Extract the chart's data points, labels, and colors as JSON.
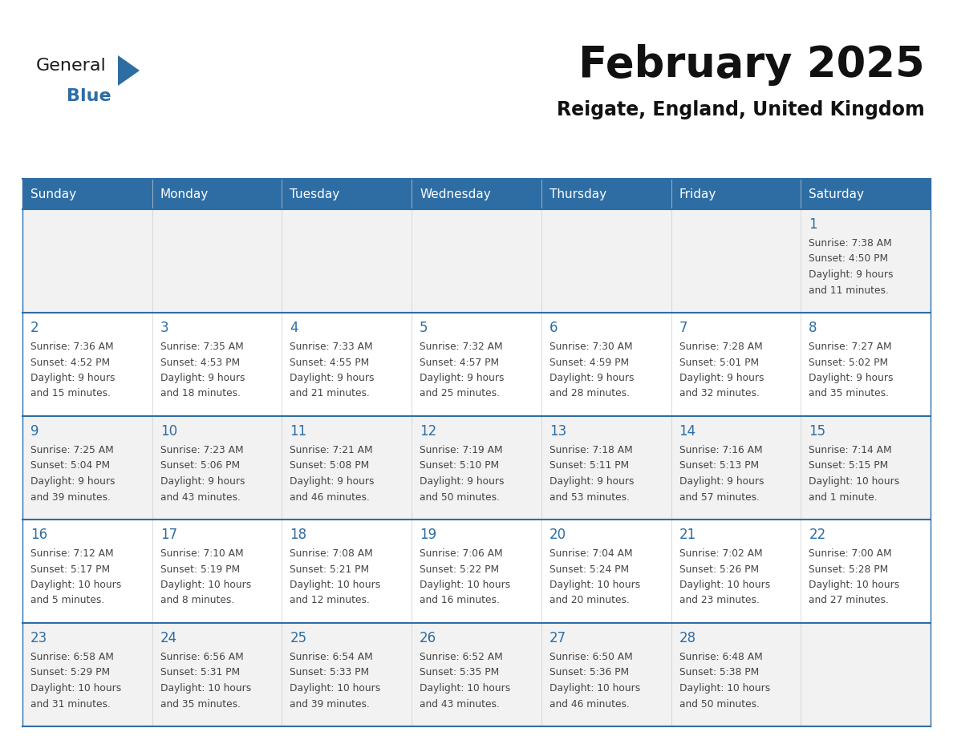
{
  "title": "February 2025",
  "subtitle": "Reigate, England, United Kingdom",
  "header_bg": "#2E6DA4",
  "header_text": "#FFFFFF",
  "cell_bg_odd": "#F2F2F2",
  "cell_bg_even": "#FFFFFF",
  "day_number_color": "#2E6DA4",
  "cell_text_color": "#444444",
  "border_color": "#2E6DA4",
  "days_of_week": [
    "Sunday",
    "Monday",
    "Tuesday",
    "Wednesday",
    "Thursday",
    "Friday",
    "Saturday"
  ],
  "calendar_data": [
    [
      {
        "day": "",
        "info": ""
      },
      {
        "day": "",
        "info": ""
      },
      {
        "day": "",
        "info": ""
      },
      {
        "day": "",
        "info": ""
      },
      {
        "day": "",
        "info": ""
      },
      {
        "day": "",
        "info": ""
      },
      {
        "day": "1",
        "info": "Sunrise: 7:38 AM\nSunset: 4:50 PM\nDaylight: 9 hours\nand 11 minutes."
      }
    ],
    [
      {
        "day": "2",
        "info": "Sunrise: 7:36 AM\nSunset: 4:52 PM\nDaylight: 9 hours\nand 15 minutes."
      },
      {
        "day": "3",
        "info": "Sunrise: 7:35 AM\nSunset: 4:53 PM\nDaylight: 9 hours\nand 18 minutes."
      },
      {
        "day": "4",
        "info": "Sunrise: 7:33 AM\nSunset: 4:55 PM\nDaylight: 9 hours\nand 21 minutes."
      },
      {
        "day": "5",
        "info": "Sunrise: 7:32 AM\nSunset: 4:57 PM\nDaylight: 9 hours\nand 25 minutes."
      },
      {
        "day": "6",
        "info": "Sunrise: 7:30 AM\nSunset: 4:59 PM\nDaylight: 9 hours\nand 28 minutes."
      },
      {
        "day": "7",
        "info": "Sunrise: 7:28 AM\nSunset: 5:01 PM\nDaylight: 9 hours\nand 32 minutes."
      },
      {
        "day": "8",
        "info": "Sunrise: 7:27 AM\nSunset: 5:02 PM\nDaylight: 9 hours\nand 35 minutes."
      }
    ],
    [
      {
        "day": "9",
        "info": "Sunrise: 7:25 AM\nSunset: 5:04 PM\nDaylight: 9 hours\nand 39 minutes."
      },
      {
        "day": "10",
        "info": "Sunrise: 7:23 AM\nSunset: 5:06 PM\nDaylight: 9 hours\nand 43 minutes."
      },
      {
        "day": "11",
        "info": "Sunrise: 7:21 AM\nSunset: 5:08 PM\nDaylight: 9 hours\nand 46 minutes."
      },
      {
        "day": "12",
        "info": "Sunrise: 7:19 AM\nSunset: 5:10 PM\nDaylight: 9 hours\nand 50 minutes."
      },
      {
        "day": "13",
        "info": "Sunrise: 7:18 AM\nSunset: 5:11 PM\nDaylight: 9 hours\nand 53 minutes."
      },
      {
        "day": "14",
        "info": "Sunrise: 7:16 AM\nSunset: 5:13 PM\nDaylight: 9 hours\nand 57 minutes."
      },
      {
        "day": "15",
        "info": "Sunrise: 7:14 AM\nSunset: 5:15 PM\nDaylight: 10 hours\nand 1 minute."
      }
    ],
    [
      {
        "day": "16",
        "info": "Sunrise: 7:12 AM\nSunset: 5:17 PM\nDaylight: 10 hours\nand 5 minutes."
      },
      {
        "day": "17",
        "info": "Sunrise: 7:10 AM\nSunset: 5:19 PM\nDaylight: 10 hours\nand 8 minutes."
      },
      {
        "day": "18",
        "info": "Sunrise: 7:08 AM\nSunset: 5:21 PM\nDaylight: 10 hours\nand 12 minutes."
      },
      {
        "day": "19",
        "info": "Sunrise: 7:06 AM\nSunset: 5:22 PM\nDaylight: 10 hours\nand 16 minutes."
      },
      {
        "day": "20",
        "info": "Sunrise: 7:04 AM\nSunset: 5:24 PM\nDaylight: 10 hours\nand 20 minutes."
      },
      {
        "day": "21",
        "info": "Sunrise: 7:02 AM\nSunset: 5:26 PM\nDaylight: 10 hours\nand 23 minutes."
      },
      {
        "day": "22",
        "info": "Sunrise: 7:00 AM\nSunset: 5:28 PM\nDaylight: 10 hours\nand 27 minutes."
      }
    ],
    [
      {
        "day": "23",
        "info": "Sunrise: 6:58 AM\nSunset: 5:29 PM\nDaylight: 10 hours\nand 31 minutes."
      },
      {
        "day": "24",
        "info": "Sunrise: 6:56 AM\nSunset: 5:31 PM\nDaylight: 10 hours\nand 35 minutes."
      },
      {
        "day": "25",
        "info": "Sunrise: 6:54 AM\nSunset: 5:33 PM\nDaylight: 10 hours\nand 39 minutes."
      },
      {
        "day": "26",
        "info": "Sunrise: 6:52 AM\nSunset: 5:35 PM\nDaylight: 10 hours\nand 43 minutes."
      },
      {
        "day": "27",
        "info": "Sunrise: 6:50 AM\nSunset: 5:36 PM\nDaylight: 10 hours\nand 46 minutes."
      },
      {
        "day": "28",
        "info": "Sunrise: 6:48 AM\nSunset: 5:38 PM\nDaylight: 10 hours\nand 50 minutes."
      },
      {
        "day": "",
        "info": ""
      }
    ]
  ],
  "logo_general_color": "#1a1a1a",
  "logo_blue_color": "#2E6DA4",
  "logo_triangle_color": "#2E6DA4",
  "fig_width": 11.88,
  "fig_height": 9.18,
  "dpi": 100
}
